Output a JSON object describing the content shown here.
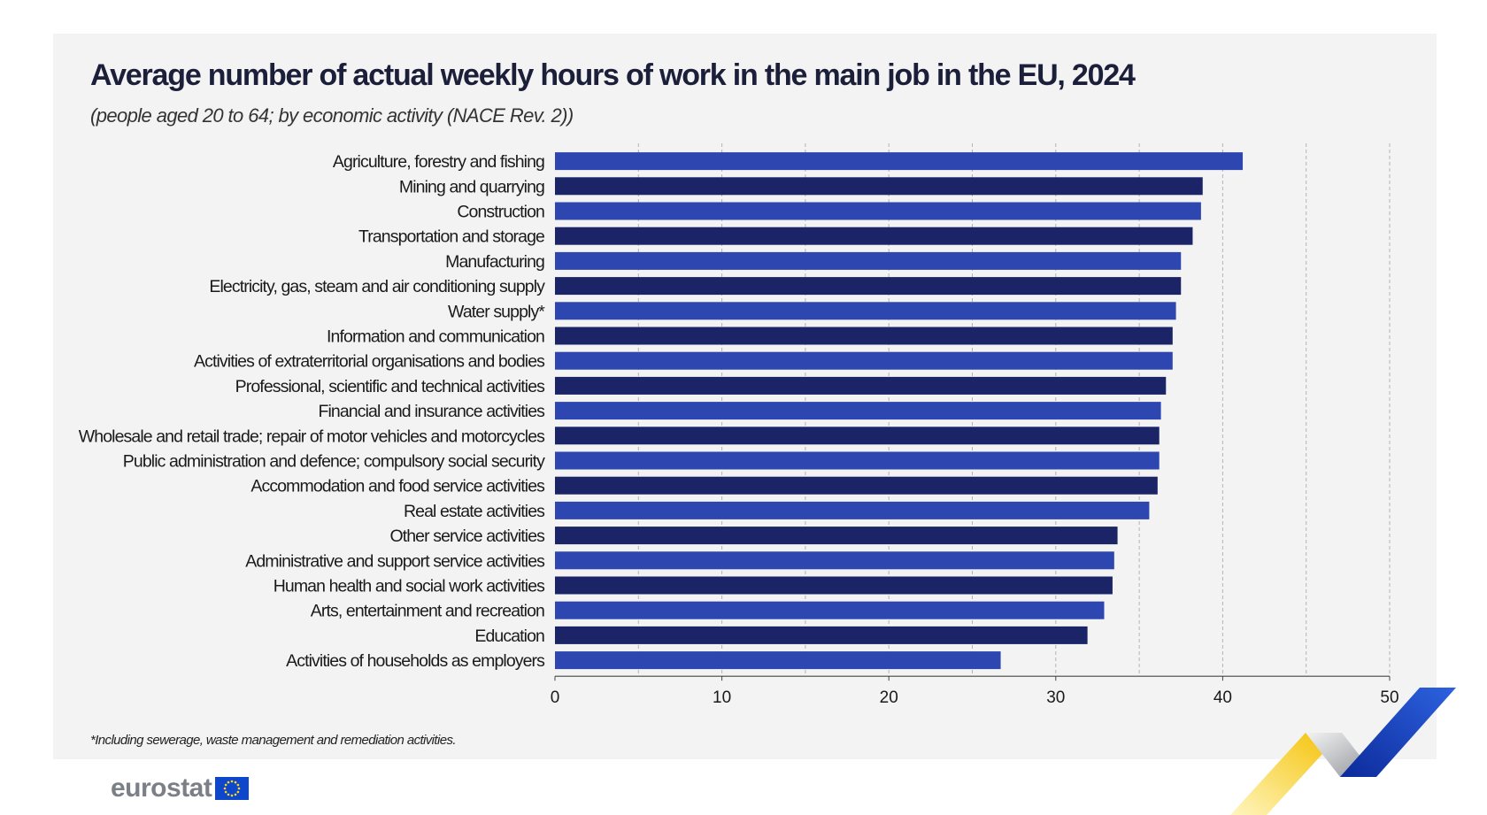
{
  "title": "Average number of actual weekly hours of work in the main job in the EU, 2024",
  "subtitle": "(people aged 20 to 64; by economic activity (NACE Rev. 2))",
  "footnote": "*Including sewerage, waste management and remediation activities.",
  "logo": {
    "text": "eurostat",
    "flag_icon": "eu-flag-icon"
  },
  "colors": {
    "bar_light": "#2e46b0",
    "bar_dark": "#1b2466",
    "panel_bg": "#f3f3f3",
    "grid": "#b3b3b3"
  },
  "chart_data": {
    "type": "bar",
    "orientation": "horizontal",
    "categories": [
      "Agriculture, forestry and fishing",
      "Mining and quarrying",
      "Construction",
      "Transportation and storage",
      "Manufacturing",
      "Electricity, gas, steam and air conditioning supply",
      "Water supply*",
      "Information and communication",
      "Activities of extraterritorial organisations and bodies",
      "Professional, scientific and technical activities",
      "Financial and insurance activities",
      "Wholesale and retail trade; repair of motor vehicles and motorcycles",
      "Public administration and defence; compulsory social security",
      "Accommodation and food service activities",
      "Real estate activities",
      "Other service activities",
      "Administrative and support service activities",
      "Human health and social work activities",
      "Arts, entertainment and recreation",
      "Education",
      "Activities of households as employers"
    ],
    "values": [
      41.2,
      38.8,
      38.7,
      38.2,
      37.5,
      37.5,
      37.2,
      37.0,
      37.0,
      36.6,
      36.3,
      36.2,
      36.2,
      36.1,
      35.6,
      33.7,
      33.5,
      33.4,
      32.9,
      31.9,
      26.7
    ],
    "xlim": [
      0,
      50
    ],
    "xticks": [
      0,
      10,
      20,
      30,
      40,
      50
    ],
    "grid": "vertical dashed"
  }
}
